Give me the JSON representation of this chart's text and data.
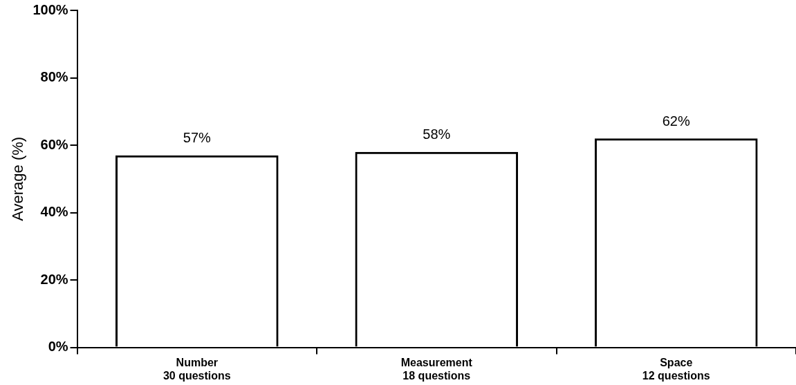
{
  "chart_data": {
    "type": "bar",
    "ylabel": "Average (%)",
    "categories": [
      "Number\n30 questions",
      "Measurement\n18 questions",
      "Space\n12 questions"
    ],
    "values": [
      57,
      58,
      62
    ],
    "color": "#000000",
    "value_labels": [
      "57%",
      "58%",
      "62%"
    ],
    "ylim": [
      0,
      100
    ],
    "yticks": [
      {
        "value": 0,
        "label": "0%"
      },
      {
        "value": 20,
        "label": "20%"
      },
      {
        "value": 40,
        "label": "40%"
      },
      {
        "value": 60,
        "label": "60%"
      },
      {
        "value": 80,
        "label": "80%"
      },
      {
        "value": 100,
        "label": "100%"
      }
    ],
    "grid": false,
    "legend": false
  }
}
